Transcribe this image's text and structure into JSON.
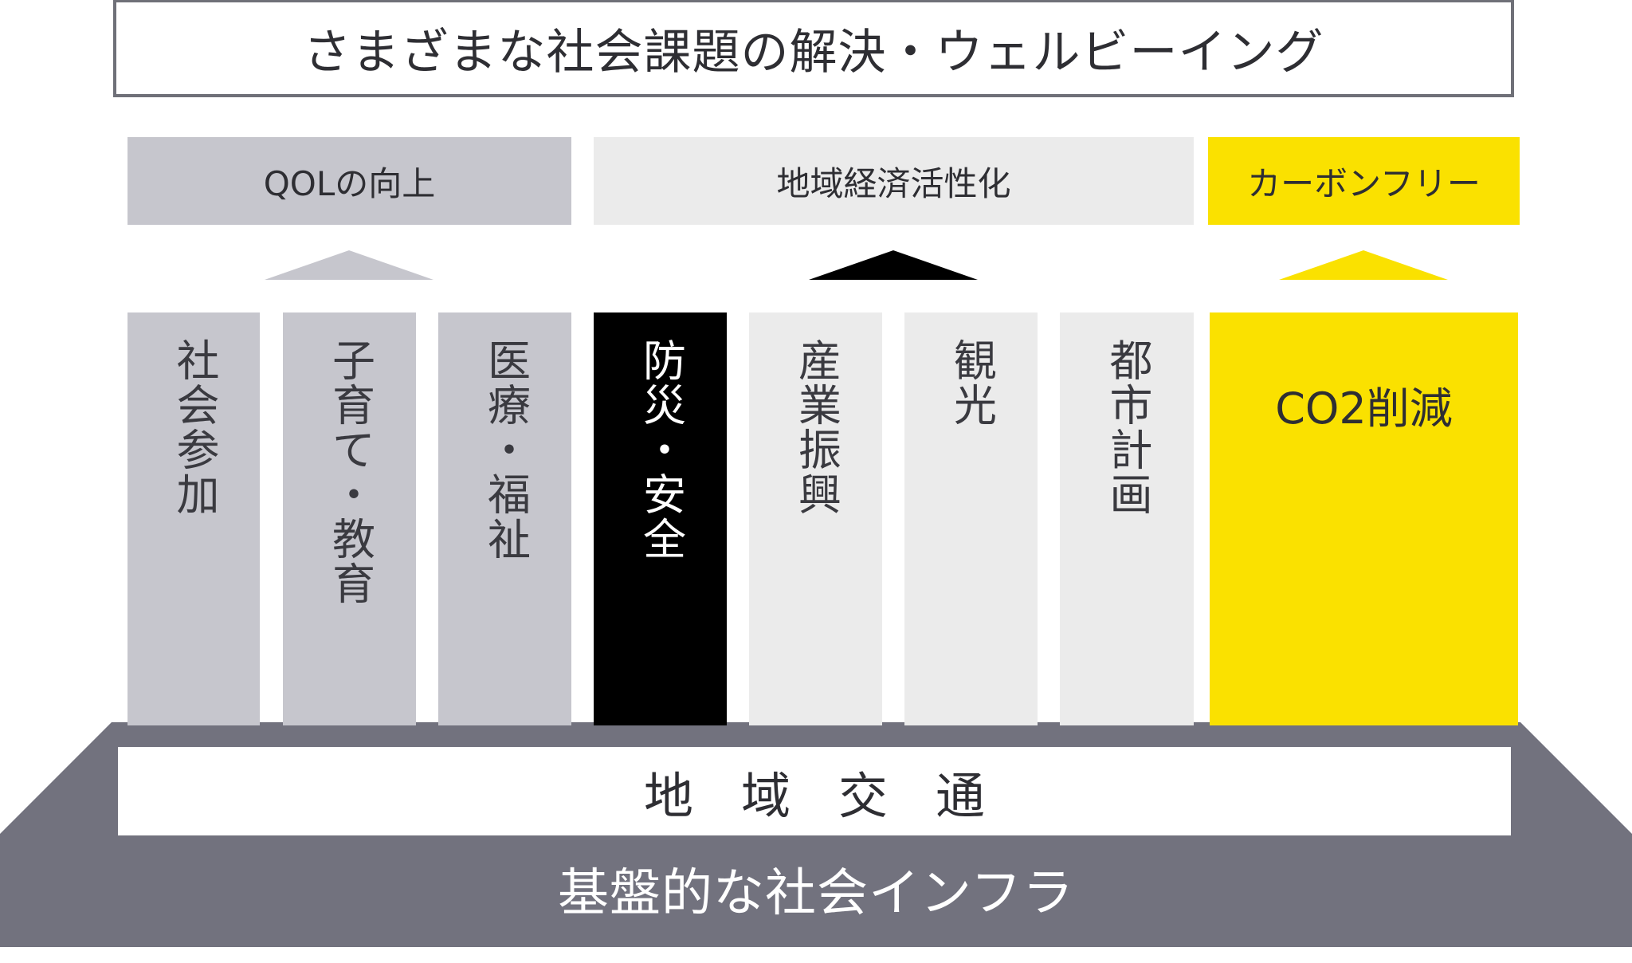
{
  "title": "さまざまな社会課題の解決・ウェルビーイング",
  "categories": {
    "qol": "QOLの向上",
    "economy": "地域経済活性化",
    "carbon": "カーボンフリー"
  },
  "pillars": [
    {
      "label": "社会参加"
    },
    {
      "label": "子育て・教育"
    },
    {
      "label": "医療・福祉"
    },
    {
      "label": "防災・安全"
    },
    {
      "label": "産業振興"
    },
    {
      "label": "観光"
    },
    {
      "label": "都市計画"
    },
    {
      "label": "CO2削減"
    }
  ],
  "base": {
    "transport": "地域交通",
    "infrastructure": "基盤的な社会インフラ"
  },
  "colors": {
    "gray": "#c6c6cd",
    "light": "#ebebeb",
    "black": "#000000",
    "yellow": "#fae100",
    "base": "#72727e",
    "border": "#6f7078"
  }
}
